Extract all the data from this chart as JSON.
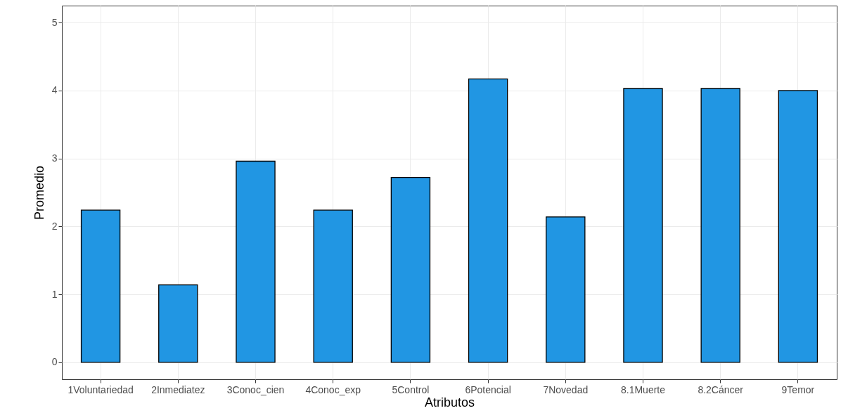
{
  "chart_data": {
    "type": "bar",
    "xlabel": "Atributos",
    "ylabel": "Promedio",
    "categories": [
      "1Voluntariedad",
      "2Inmediatez",
      "3Conoc_cien",
      "4Conoc_exp",
      "5Control",
      "6Potencial",
      "7Novedad",
      "8.1Muerte",
      "8.2Cáncer",
      "9Temor"
    ],
    "values": [
      2.24,
      1.14,
      2.96,
      2.24,
      2.72,
      4.17,
      2.14,
      4.03,
      4.03,
      4.0
    ],
    "color": "#2196e3",
    "ylim": [
      -0.25,
      5.25
    ],
    "yticks": [
      0,
      1,
      2,
      3,
      4,
      5
    ],
    "grid": true
  }
}
